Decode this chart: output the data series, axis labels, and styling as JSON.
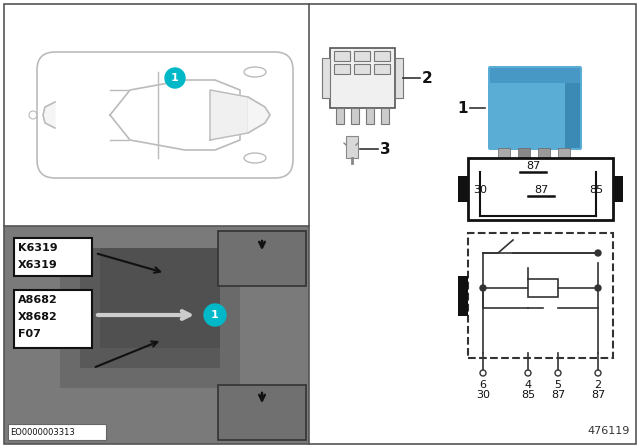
{
  "bg_color": "#ffffff",
  "teal_color": "#00b8c8",
  "top_panel_bg": "#f8f8f8",
  "bottom_bg": "#888888",
  "car_line_color": "#aaaaaa",
  "code_labels_top": [
    "K6319",
    "X6319"
  ],
  "code_labels_bottom": [
    "A8682",
    "X8682",
    "F07"
  ],
  "relay_pins_top": "87",
  "relay_pins_mid_left": "30",
  "relay_pins_mid_center": "87",
  "relay_pins_mid_right": "85",
  "pin_row1": [
    "6",
    "4",
    "5",
    "2"
  ],
  "pin_row2": [
    "30",
    "85",
    "87",
    "87"
  ],
  "eo_code": "EO0000003313",
  "ref_code": "476119",
  "border_color": "#555555",
  "dark_color": "#222222"
}
